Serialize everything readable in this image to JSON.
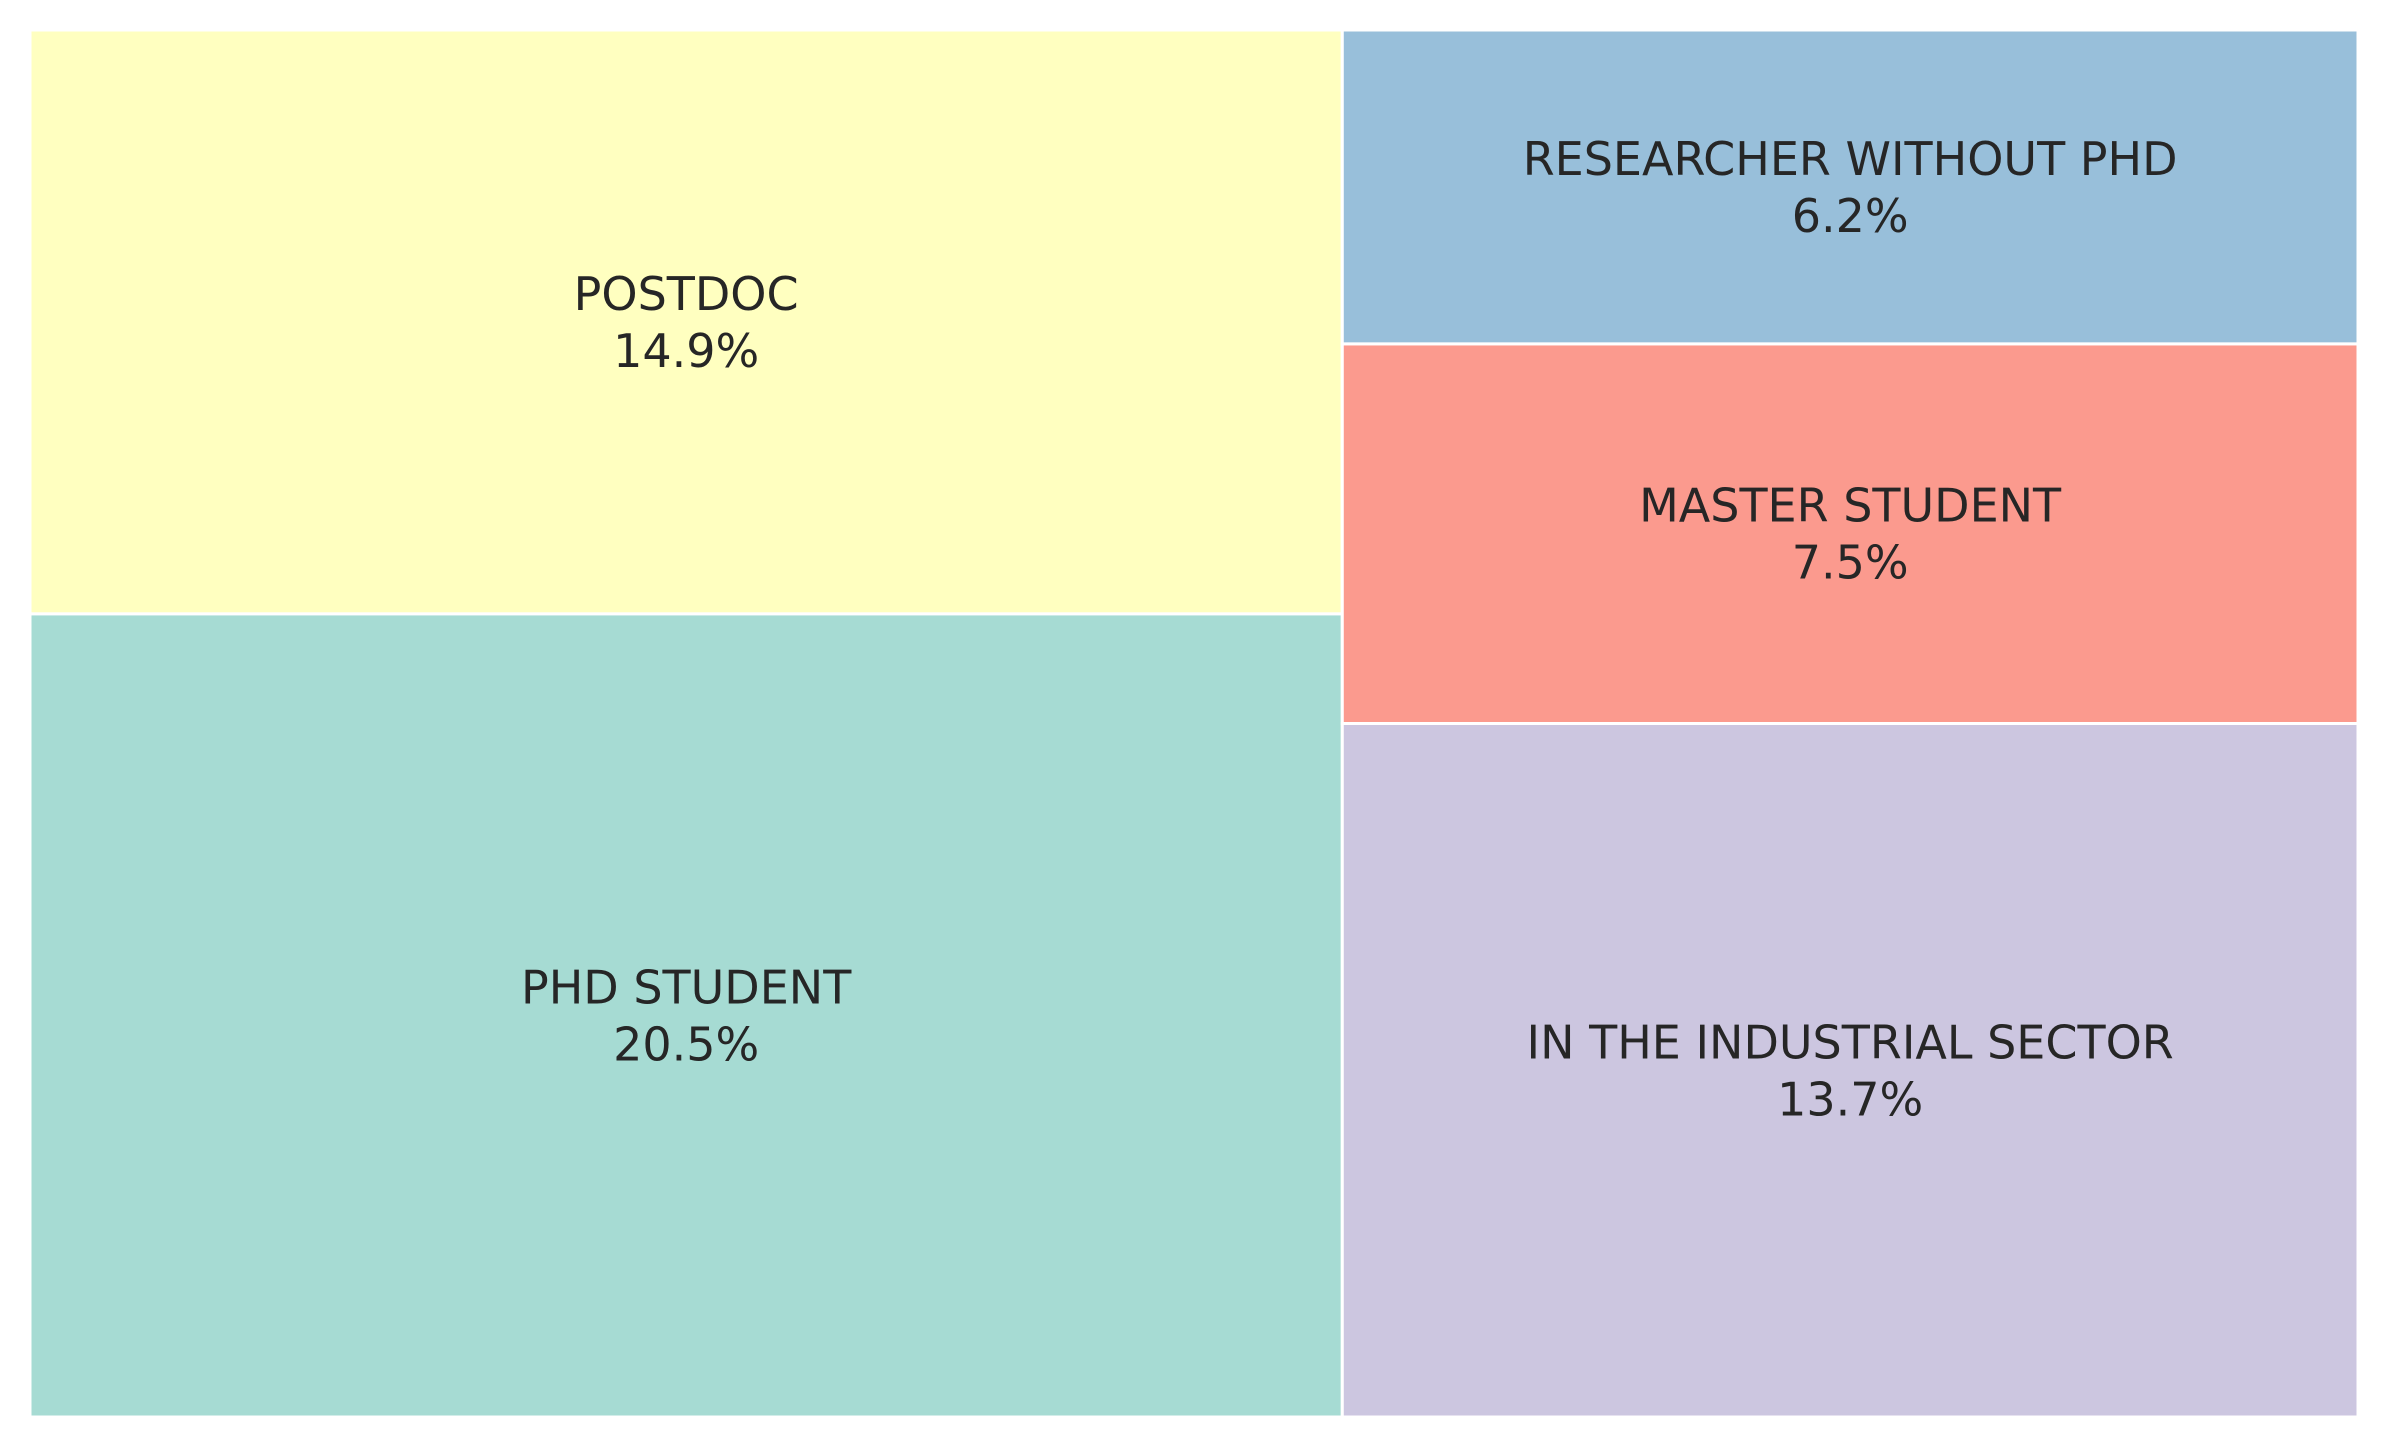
{
  "chart_data": {
    "type": "treemap",
    "title": "",
    "items": [
      {
        "label": "PHD STUDENT",
        "value": 20.5,
        "value_label": "20.5%",
        "color": "#a6dbd3"
      },
      {
        "label": "POSTDOC",
        "value": 14.9,
        "value_label": "14.9%",
        "color": "#ffffc0"
      },
      {
        "label": "IN THE INDUSTRIAL SECTOR",
        "value": 13.7,
        "value_label": "13.7%",
        "color": "#ccc6e0"
      },
      {
        "label": "MASTER STUDENT",
        "value": 7.5,
        "value_label": "7.5%",
        "color": "#fb9a8e"
      },
      {
        "label": "RESEARCHER WITHOUT PHD",
        "value": 6.2,
        "value_label": "6.2%",
        "color": "#98bfda"
      }
    ],
    "legend": "none",
    "grid": false,
    "tile_border_color": "#ffffff"
  }
}
